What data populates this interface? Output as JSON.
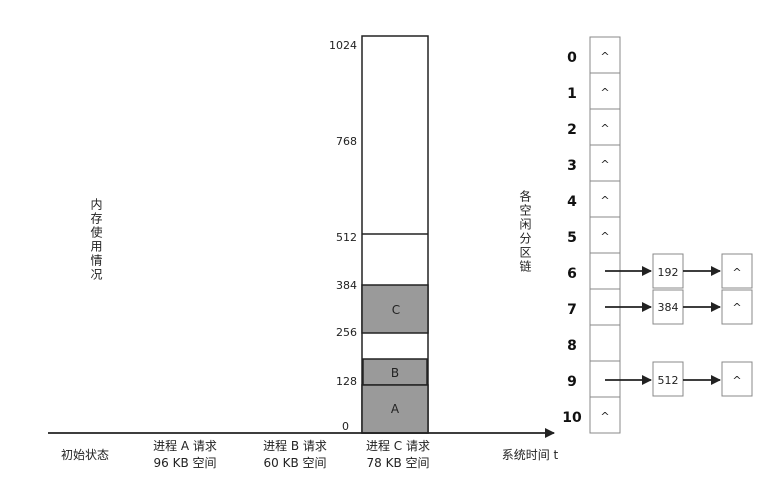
{
  "memory_axis_label": "内存使用情况",
  "free_list_label": "各空闲分区链",
  "time_axis_label": "系统时间 t",
  "memory_ticks": [
    "1024",
    "768",
    "512",
    "384",
    "256",
    "128",
    "0"
  ],
  "blocks": {
    "a": "A",
    "b": "B",
    "c": "C"
  },
  "stages": [
    {
      "line1": "初始状态",
      "line2": ""
    },
    {
      "line1": "进程 A 请求",
      "line2": "96 KB 空间"
    },
    {
      "line1": "进程 B 请求",
      "line2": "60 KB 空间"
    },
    {
      "line1": "进程 C 请求",
      "line2": "78 KB 空间"
    }
  ],
  "free_lists": {
    "indices": [
      "0",
      "1",
      "2",
      "3",
      "4",
      "5",
      "6",
      "7",
      "8",
      "9",
      "10"
    ],
    "null_symbol": "^",
    "node_6": "192",
    "node_7": "384",
    "node_9": "512"
  }
}
